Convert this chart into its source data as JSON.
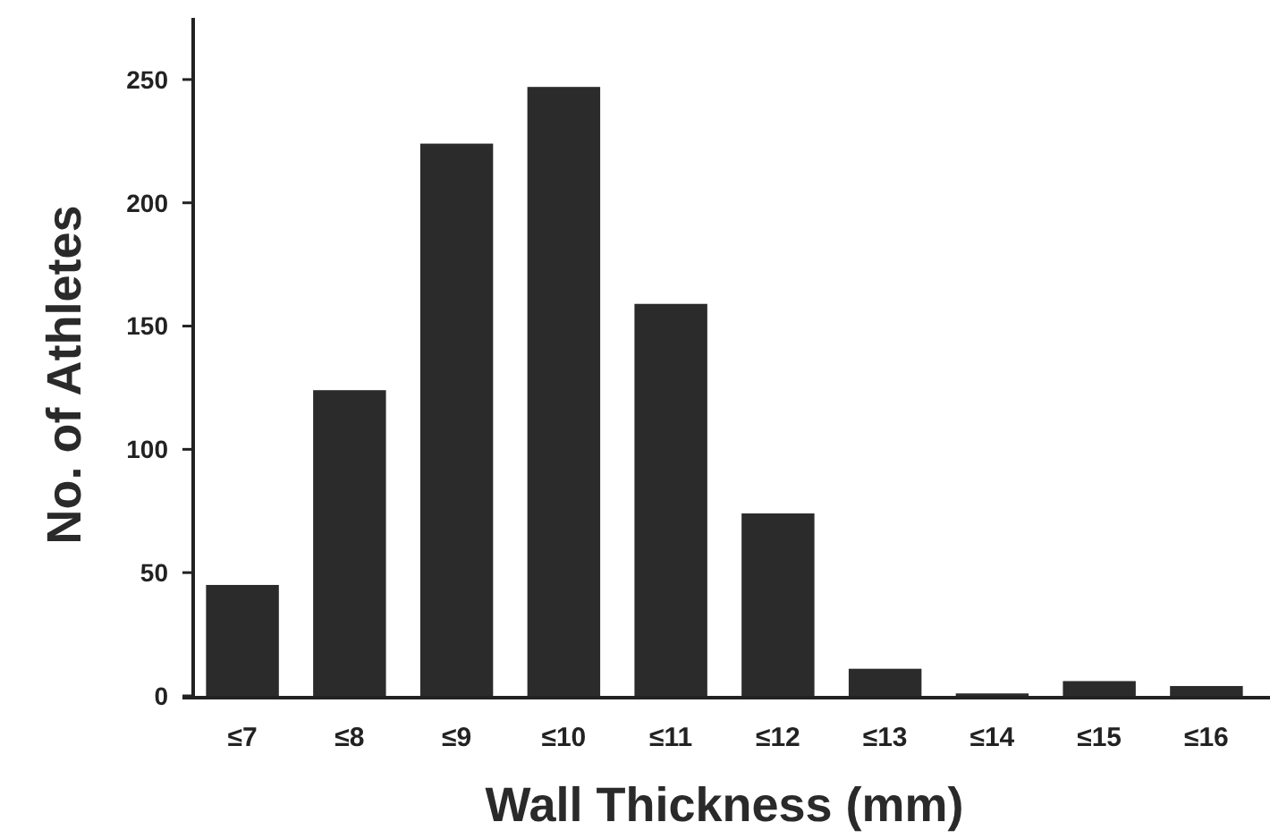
{
  "chart_data": {
    "type": "bar",
    "xlabel": "Wall Thickness (mm)",
    "ylabel": "No. of Athletes",
    "categories": [
      "≤7",
      "≤8",
      "≤9",
      "≤10",
      "≤11",
      "≤12",
      "≤13",
      "≤14",
      "≤15",
      "≤16"
    ],
    "values": [
      45,
      124,
      224,
      247,
      159,
      74,
      11,
      1,
      6,
      4
    ],
    "color": "#2b2b2b",
    "ylim": [
      0,
      275
    ],
    "yticks": [
      0,
      50,
      100,
      150,
      200,
      250
    ],
    "grid": false
  }
}
